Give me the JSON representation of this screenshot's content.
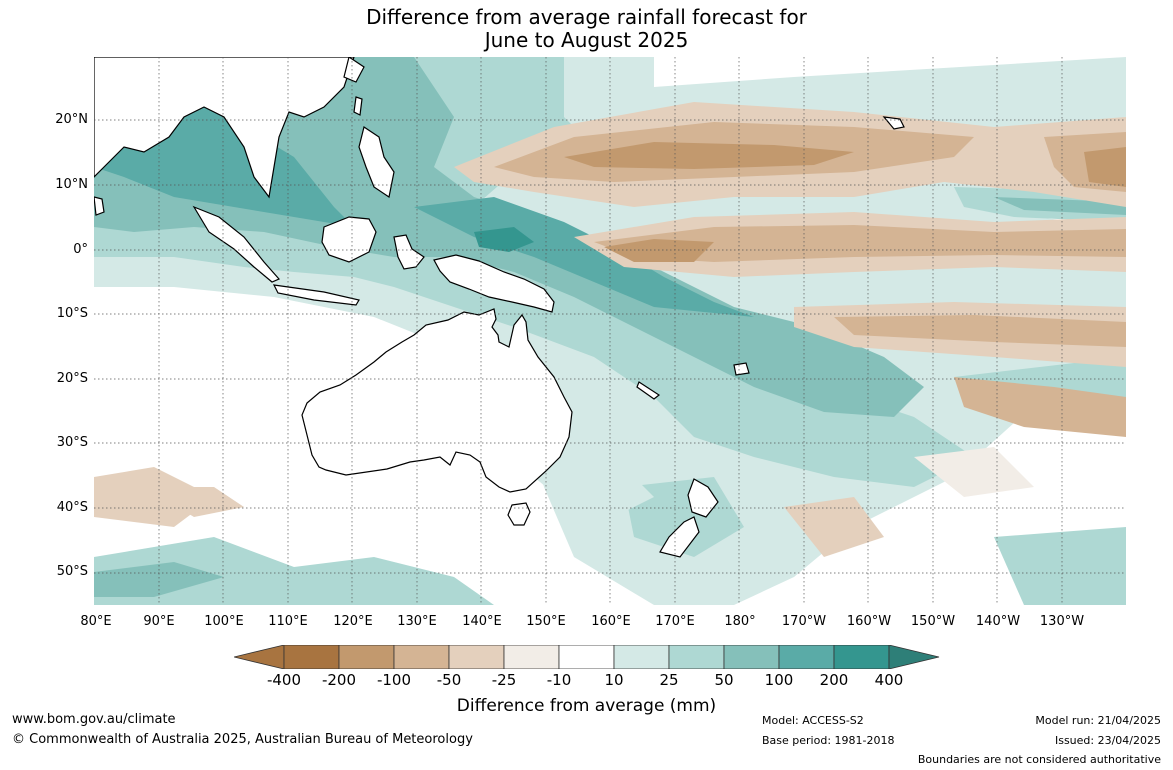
{
  "title": {
    "line1": "Difference from average rainfall forecast for",
    "line2": "June to August 2025"
  },
  "map": {
    "lat_labels": [
      "20°N",
      "10°N",
      "0°",
      "10°S",
      "20°S",
      "30°S",
      "40°S",
      "50°S"
    ],
    "lon_labels": [
      "80°E",
      "90°E",
      "100°E",
      "110°E",
      "120°E",
      "130°E",
      "140°E",
      "150°E",
      "160°E",
      "170°E",
      "180°",
      "170°W",
      "160°W",
      "150°W",
      "140°W",
      "130°W"
    ],
    "colors": {
      "dry_strong": "#a87440",
      "dry_moderate": "#c2996e",
      "dry_light": "#d4b494",
      "dry_slight": "#e4d0bd",
      "near_dry": "#f2ede7",
      "wet_slight": "#d4e9e6",
      "wet_light": "#aed8d3",
      "wet_moderate": "#85c0ba",
      "wet_strong": "#5aaba7",
      "wet_extreme": "#34968f",
      "land": "#ffffff"
    }
  },
  "legend": {
    "ticks": [
      "-400",
      "-200",
      "-100",
      "-50",
      "-25",
      "-10",
      "10",
      "25",
      "50",
      "100",
      "200",
      "400"
    ],
    "colors": [
      "#a87440",
      "#c2996e",
      "#d4b494",
      "#e4d0bd",
      "#f2ede7",
      "#ffffff",
      "#d4e9e6",
      "#aed8d3",
      "#85c0ba",
      "#5aaba7",
      "#34968f",
      "#2e7f78"
    ],
    "title": "Difference from average (mm)"
  },
  "footer": {
    "website": "www.bom.gov.au/climate",
    "copyright": "© Commonwealth of Australia 2025, Australian Bureau of Meteorology",
    "model": "Model: ACCESS-S2",
    "base_period": "Base period: 1981-2018",
    "model_run": "Model run: 21/04/2025",
    "issued": "Issued: 23/04/2025",
    "disclaimer": "Boundaries are not considered authoritative"
  }
}
